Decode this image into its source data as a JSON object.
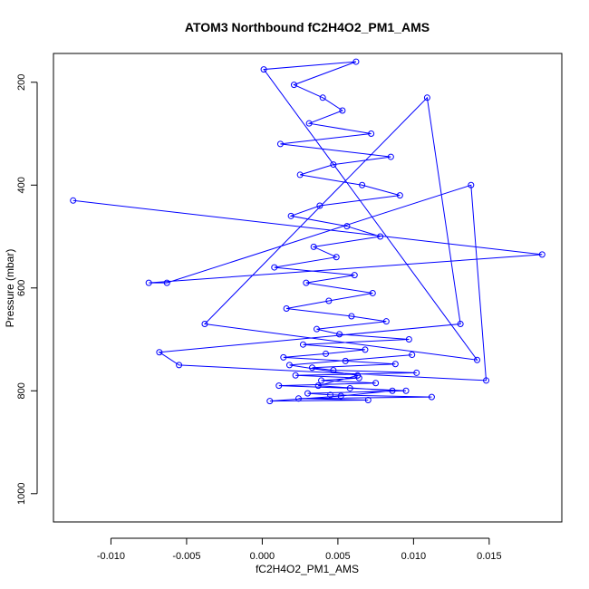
{
  "chart_data": {
    "type": "scatter",
    "title": "ATOM3 Northbound fC2H4O2_PM1_AMS",
    "xlabel": "fC2H4O2_PM1_AMS",
    "ylabel": "Pressure (mbar)",
    "xlim": [
      -0.0138,
      0.0198
    ],
    "ylim": [
      1055,
      144
    ],
    "y_reversed": true,
    "grid": false,
    "point_style": "open-circle",
    "line_connected": true,
    "color": "#0000ff",
    "x_ticks": [
      -0.01,
      -0.005,
      0.0,
      0.005,
      0.01,
      0.015
    ],
    "x_tick_labels": [
      "-0.010",
      "-0.005",
      "0.000",
      "0.005",
      "0.010",
      "0.015"
    ],
    "y_ticks": [
      200,
      400,
      600,
      800,
      1000
    ],
    "y_tick_labels": [
      "200",
      "400",
      "600",
      "800",
      "1000"
    ],
    "series": [
      {
        "x": [
          -0.0125,
          0.0185,
          -0.0075,
          -0.0063,
          0.0138,
          0.0148,
          -0.0055,
          -0.0068,
          0.0131,
          0.0109,
          -0.0038,
          0.0142,
          0.0001,
          0.0062,
          0.0021,
          0.004,
          0.0053,
          0.0031,
          0.0072,
          0.0012,
          0.0085,
          0.0047,
          0.0025,
          0.0066,
          0.0091,
          0.0038,
          0.0019,
          0.0056,
          0.0078,
          0.0034,
          0.0049,
          0.0008,
          0.0061,
          0.0029,
          0.0073,
          0.0044,
          0.0016,
          0.0059,
          0.0082,
          0.0036,
          0.0051,
          0.0097,
          0.0027,
          0.0068,
          0.0042,
          0.0014,
          0.0055,
          0.0088,
          0.0033,
          0.0047,
          0.0102,
          0.0022,
          0.0064,
          0.0039,
          0.0075,
          0.0011,
          0.0058,
          0.0095,
          0.003,
          0.0045,
          0.0112,
          0.0024,
          0.007,
          0.0005,
          0.0052,
          0.0086,
          0.0037,
          0.0063,
          0.0018,
          0.0099
        ],
        "y": [
          430,
          535,
          590,
          590,
          400,
          780,
          750,
          725,
          670,
          230,
          670,
          740,
          175,
          160,
          205,
          230,
          255,
          280,
          300,
          320,
          345,
          360,
          380,
          400,
          420,
          440,
          460,
          480,
          500,
          520,
          540,
          560,
          575,
          590,
          610,
          625,
          640,
          655,
          665,
          680,
          690,
          700,
          710,
          720,
          728,
          735,
          742,
          748,
          755,
          760,
          765,
          770,
          775,
          780,
          785,
          790,
          795,
          800,
          805,
          808,
          812,
          815,
          818,
          820,
          810,
          800,
          790,
          770,
          750,
          730
        ]
      }
    ]
  }
}
